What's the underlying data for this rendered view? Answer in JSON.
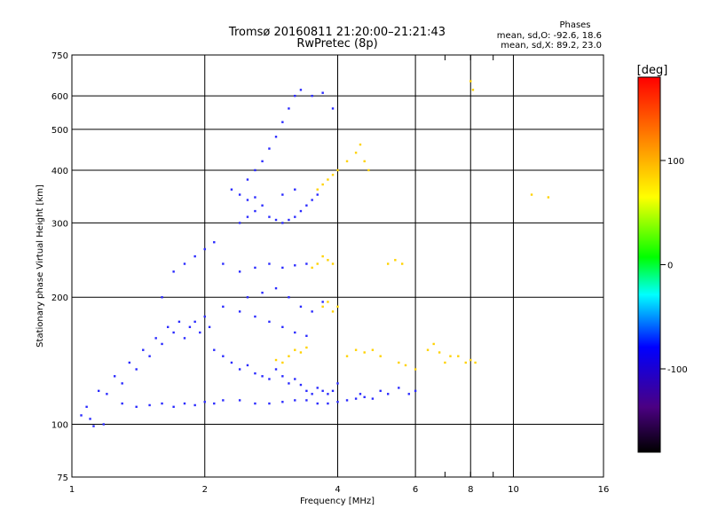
{
  "chart_data": {
    "type": "scatter",
    "title": "Tromsø 20160811 21:20:00–21:21:43",
    "subtitle": "RwPretec (8p)",
    "xlabel": "Frequency [MHz]",
    "ylabel": "Stationary phase Virtual Height [km]",
    "x_scale": "log",
    "y_scale": "log",
    "xlim": [
      1,
      16
    ],
    "ylim": [
      75,
      750
    ],
    "x_ticks": [
      1,
      2,
      4,
      6,
      8,
      10,
      16
    ],
    "x_tick_labels": [
      "1",
      "2",
      "4",
      "6",
      "8",
      "10",
      "16"
    ],
    "y_ticks": [
      75,
      100,
      200,
      300,
      400,
      500,
      600,
      750
    ],
    "y_tick_labels": [
      "75",
      "100",
      "200",
      "300",
      "400",
      "500",
      "600",
      "750"
    ],
    "grid": true,
    "legend": {
      "title": "Phases",
      "lines": [
        "mean, sd,O: -92.6, 18.6",
        "mean, sd,X: 89.2, 23.0"
      ],
      "position": "top-right"
    },
    "colorbar": {
      "label": "[deg]",
      "range": [
        -180,
        180
      ],
      "ticks": [
        100,
        0,
        -100
      ],
      "tick_labels": [
        "100",
        "0",
        "-100"
      ],
      "colormap": "rainbow"
    },
    "series": [
      {
        "name": "O",
        "color_value": -92.6,
        "color": "#2a2aff",
        "points": [
          [
            1.05,
            105
          ],
          [
            1.1,
            103
          ],
          [
            1.08,
            110
          ],
          [
            1.15,
            120
          ],
          [
            1.2,
            118
          ],
          [
            1.25,
            130
          ],
          [
            1.3,
            125
          ],
          [
            1.35,
            140
          ],
          [
            1.4,
            135
          ],
          [
            1.45,
            150
          ],
          [
            1.5,
            145
          ],
          [
            1.55,
            160
          ],
          [
            1.6,
            155
          ],
          [
            1.65,
            170
          ],
          [
            1.7,
            165
          ],
          [
            1.75,
            175
          ],
          [
            1.8,
            160
          ],
          [
            1.85,
            170
          ],
          [
            1.9,
            175
          ],
          [
            1.95,
            165
          ],
          [
            2.0,
            180
          ],
          [
            2.05,
            170
          ],
          [
            2.1,
            150
          ],
          [
            2.2,
            145
          ],
          [
            2.3,
            140
          ],
          [
            2.4,
            135
          ],
          [
            2.5,
            138
          ],
          [
            2.6,
            132
          ],
          [
            2.7,
            130
          ],
          [
            2.8,
            128
          ],
          [
            2.9,
            135
          ],
          [
            3.0,
            130
          ],
          [
            3.1,
            125
          ],
          [
            3.2,
            128
          ],
          [
            3.3,
            124
          ],
          [
            3.4,
            120
          ],
          [
            3.5,
            118
          ],
          [
            3.6,
            122
          ],
          [
            3.7,
            120
          ],
          [
            3.8,
            118
          ],
          [
            3.9,
            120
          ],
          [
            4.0,
            125
          ],
          [
            1.3,
            112
          ],
          [
            1.4,
            110
          ],
          [
            1.5,
            111
          ],
          [
            1.6,
            112
          ],
          [
            1.7,
            110
          ],
          [
            1.8,
            112
          ],
          [
            1.9,
            111
          ],
          [
            2.0,
            113
          ],
          [
            2.1,
            112
          ],
          [
            2.2,
            114
          ],
          [
            2.4,
            114
          ],
          [
            2.6,
            112
          ],
          [
            2.8,
            112
          ],
          [
            3.0,
            113
          ],
          [
            3.2,
            114
          ],
          [
            3.4,
            114
          ],
          [
            3.6,
            112
          ],
          [
            3.8,
            112
          ],
          [
            4.0,
            113
          ],
          [
            4.2,
            114
          ],
          [
            4.4,
            115
          ],
          [
            4.6,
            116
          ],
          [
            1.6,
            200
          ],
          [
            1.7,
            230
          ],
          [
            1.8,
            240
          ],
          [
            1.9,
            250
          ],
          [
            2.0,
            260
          ],
          [
            2.1,
            270
          ],
          [
            2.2,
            240
          ],
          [
            2.4,
            230
          ],
          [
            2.6,
            235
          ],
          [
            2.8,
            240
          ],
          [
            3.0,
            235
          ],
          [
            3.2,
            238
          ],
          [
            3.4,
            240
          ],
          [
            2.4,
            300
          ],
          [
            2.5,
            310
          ],
          [
            2.6,
            320
          ],
          [
            2.7,
            330
          ],
          [
            2.8,
            310
          ],
          [
            2.9,
            305
          ],
          [
            3.0,
            300
          ],
          [
            3.1,
            305
          ],
          [
            3.2,
            310
          ],
          [
            3.3,
            320
          ],
          [
            3.4,
            330
          ],
          [
            3.5,
            340
          ],
          [
            3.6,
            350
          ],
          [
            2.5,
            380
          ],
          [
            2.6,
            400
          ],
          [
            2.7,
            420
          ],
          [
            2.8,
            450
          ],
          [
            2.9,
            480
          ],
          [
            3.0,
            520
          ],
          [
            3.1,
            560
          ],
          [
            3.2,
            600
          ],
          [
            3.3,
            620
          ],
          [
            3.5,
            600
          ],
          [
            3.7,
            610
          ],
          [
            3.9,
            560
          ],
          [
            2.3,
            360
          ],
          [
            2.4,
            350
          ],
          [
            2.5,
            340
          ],
          [
            2.6,
            345
          ],
          [
            3.0,
            350
          ],
          [
            3.2,
            360
          ],
          [
            2.5,
            200
          ],
          [
            2.7,
            205
          ],
          [
            2.9,
            210
          ],
          [
            3.1,
            200
          ],
          [
            3.3,
            190
          ],
          [
            3.5,
            185
          ],
          [
            3.7,
            195
          ],
          [
            2.2,
            190
          ],
          [
            2.4,
            185
          ],
          [
            2.6,
            180
          ],
          [
            2.8,
            175
          ],
          [
            3.0,
            170
          ],
          [
            3.2,
            165
          ],
          [
            3.4,
            162
          ],
          [
            4.5,
            118
          ],
          [
            4.8,
            115
          ],
          [
            5.0,
            120
          ],
          [
            5.2,
            118
          ],
          [
            5.5,
            122
          ],
          [
            5.8,
            118
          ],
          [
            6.0,
            120
          ],
          [
            1.18,
            100
          ],
          [
            1.12,
            99
          ]
        ]
      },
      {
        "name": "X",
        "color_value": 89.2,
        "color": "#ffd200",
        "points": [
          [
            3.6,
            360
          ],
          [
            3.7,
            370
          ],
          [
            3.8,
            380
          ],
          [
            3.9,
            390
          ],
          [
            4.0,
            400
          ],
          [
            4.2,
            420
          ],
          [
            4.4,
            440
          ],
          [
            4.5,
            460
          ],
          [
            4.6,
            420
          ],
          [
            4.7,
            400
          ],
          [
            3.6,
            240
          ],
          [
            3.7,
            250
          ],
          [
            3.8,
            245
          ],
          [
            3.9,
            240
          ],
          [
            3.5,
            235
          ],
          [
            3.7,
            190
          ],
          [
            3.8,
            195
          ],
          [
            3.9,
            185
          ],
          [
            4.0,
            190
          ],
          [
            3.2,
            150
          ],
          [
            3.3,
            148
          ],
          [
            3.4,
            152
          ],
          [
            3.1,
            145
          ],
          [
            3.0,
            140
          ],
          [
            2.9,
            142
          ],
          [
            4.2,
            145
          ],
          [
            4.4,
            150
          ],
          [
            4.6,
            148
          ],
          [
            4.8,
            150
          ],
          [
            5.0,
            145
          ],
          [
            6.4,
            150
          ],
          [
            6.6,
            155
          ],
          [
            6.8,
            148
          ],
          [
            7.0,
            140
          ],
          [
            7.2,
            145
          ],
          [
            7.5,
            145
          ],
          [
            7.8,
            140
          ],
          [
            8.0,
            142
          ],
          [
            8.2,
            140
          ],
          [
            5.5,
            140
          ],
          [
            5.7,
            138
          ],
          [
            6.0,
            135
          ],
          [
            5.2,
            240
          ],
          [
            5.4,
            245
          ],
          [
            5.6,
            240
          ],
          [
            8.0,
            650
          ],
          [
            8.1,
            620
          ],
          [
            12.0,
            345
          ],
          [
            11.0,
            350
          ]
        ]
      }
    ]
  }
}
